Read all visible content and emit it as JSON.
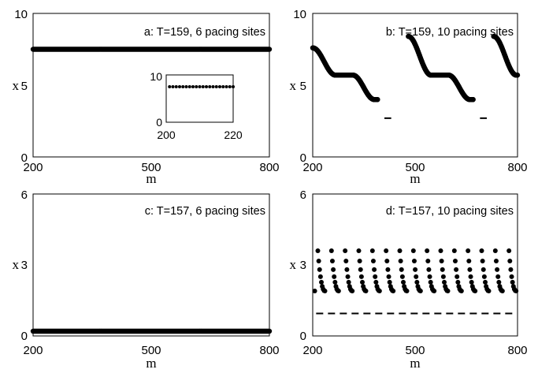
{
  "chart_data": [
    {
      "id": "a",
      "type": "scatter",
      "title": "a: T=159, 6 pacing sites",
      "xlabel": "m",
      "ylabel": "x",
      "xlim": [
        200,
        800
      ],
      "ylim": [
        0,
        10
      ],
      "xticks": [
        "200",
        "500",
        "800"
      ],
      "yticks": [
        "0",
        "5",
        "10"
      ],
      "series": [
        {
          "kind": "flat",
          "x_start": 200,
          "x_end": 800,
          "step": 2,
          "y": 7.5
        }
      ],
      "inset": {
        "xlim": [
          200,
          220
        ],
        "ylim": [
          0,
          10
        ],
        "xticks": [
          "200",
          "220"
        ],
        "yticks": [
          "0",
          "10"
        ],
        "points": {
          "x_start": 201,
          "x_end": 220,
          "step": 1,
          "y": 7.5
        }
      }
    },
    {
      "id": "b",
      "type": "scatter",
      "title": "b: T=159, 10 pacing sites",
      "xlabel": "m",
      "ylabel": "x",
      "xlim": [
        200,
        800
      ],
      "ylim": [
        0,
        10
      ],
      "xticks": [
        "200",
        "500",
        "800"
      ],
      "yticks": [
        "0",
        "5",
        "10"
      ],
      "series": [
        {
          "kind": "wave",
          "x_start": 200,
          "x_end": 390,
          "y_start": 7.6,
          "y_end": 4.0,
          "plateau": 5.7
        },
        {
          "kind": "wave",
          "x_start": 480,
          "x_end": 670,
          "y_start": 8.4,
          "y_end": 4.0,
          "plateau": 5.7
        },
        {
          "kind": "wave",
          "x_start": 730,
          "x_end": 800,
          "y_start": 8.4,
          "y_end": 5.7,
          "plateau": 5.7
        }
      ],
      "markers": [
        {
          "x_start": 410,
          "x_end": 430,
          "y": 2.7
        },
        {
          "x_start": 690,
          "x_end": 710,
          "y": 2.7
        }
      ]
    },
    {
      "id": "c",
      "type": "scatter",
      "title": "c: T=157, 6 pacing sites",
      "xlabel": "m",
      "ylabel": "x",
      "xlim": [
        200,
        800
      ],
      "ylim": [
        0,
        6
      ],
      "xticks": [
        "200",
        "500",
        "800"
      ],
      "yticks": [
        "0",
        "3",
        "6"
      ],
      "series": [
        {
          "kind": "flat",
          "x_start": 200,
          "x_end": 800,
          "step": 2,
          "y": 0.2
        }
      ]
    },
    {
      "id": "d",
      "type": "scatter",
      "title": "d: T=157, 10 pacing sites",
      "xlabel": "m",
      "ylabel": "x",
      "xlim": [
        200,
        800
      ],
      "ylim": [
        0,
        6
      ],
      "xticks": [
        "200",
        "500",
        "800"
      ],
      "yticks": [
        "0",
        "3",
        "6"
      ],
      "series": [
        {
          "kind": "sawtooth",
          "first_peak": 215,
          "period": 40,
          "x_end": 800,
          "y_peak": 3.6,
          "y_base": 1.9,
          "points_per_period": 9
        }
      ],
      "reference_line": {
        "y": 0.95,
        "style": "dashed",
        "x_start": 210,
        "x_end": 790
      }
    }
  ]
}
